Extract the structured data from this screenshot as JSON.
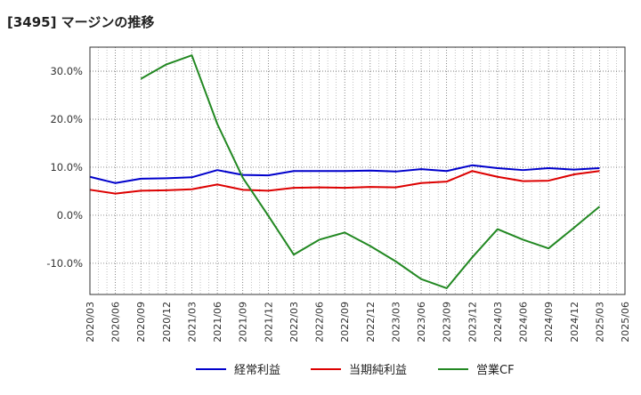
{
  "chart_data": {
    "type": "line",
    "title": "[3495]  マージンの推移",
    "x": [
      "2020/03",
      "2020/06",
      "2020/09",
      "2020/12",
      "2021/03",
      "2021/06",
      "2021/09",
      "2021/12",
      "2022/03",
      "2022/06",
      "2022/09",
      "2022/12",
      "2023/03",
      "2023/06",
      "2023/09",
      "2023/12",
      "2024/03",
      "2024/06",
      "2024/09",
      "2024/12",
      "2025/03",
      "2025/06"
    ],
    "yticks": [
      "30.0%",
      "20.0%",
      "10.0%",
      "0.0%",
      "-10.0%"
    ],
    "ytick_values": [
      30,
      20,
      10,
      0,
      -10
    ],
    "ylim": [
      -16.5,
      35
    ],
    "grid": true,
    "legend_position": "bottom",
    "series": [
      {
        "name": "経常利益",
        "color": "#0000cc",
        "values": [
          8.0,
          6.7,
          7.6,
          7.7,
          7.9,
          9.4,
          8.4,
          8.3,
          9.2,
          9.2,
          9.2,
          9.3,
          9.1,
          9.6,
          9.2,
          10.4,
          9.8,
          9.4,
          9.8,
          9.5,
          9.8,
          null
        ]
      },
      {
        "name": "当期純利益",
        "color": "#dd0000",
        "values": [
          5.3,
          4.5,
          5.1,
          5.2,
          5.4,
          6.4,
          5.3,
          5.1,
          5.7,
          5.8,
          5.7,
          5.9,
          5.8,
          6.7,
          7.0,
          9.2,
          8.0,
          7.1,
          7.2,
          8.5,
          9.2,
          null
        ]
      },
      {
        "name": "営業CF",
        "color": "#228822",
        "values": [
          null,
          null,
          28.4,
          31.4,
          33.3,
          19.0,
          7.8,
          -0.1,
          -8.2,
          -5.1,
          -3.6,
          -6.4,
          -9.6,
          -13.3,
          -15.2,
          -8.8,
          -2.9,
          -5.1,
          -6.9,
          -2.6,
          1.8,
          null
        ]
      }
    ]
  }
}
